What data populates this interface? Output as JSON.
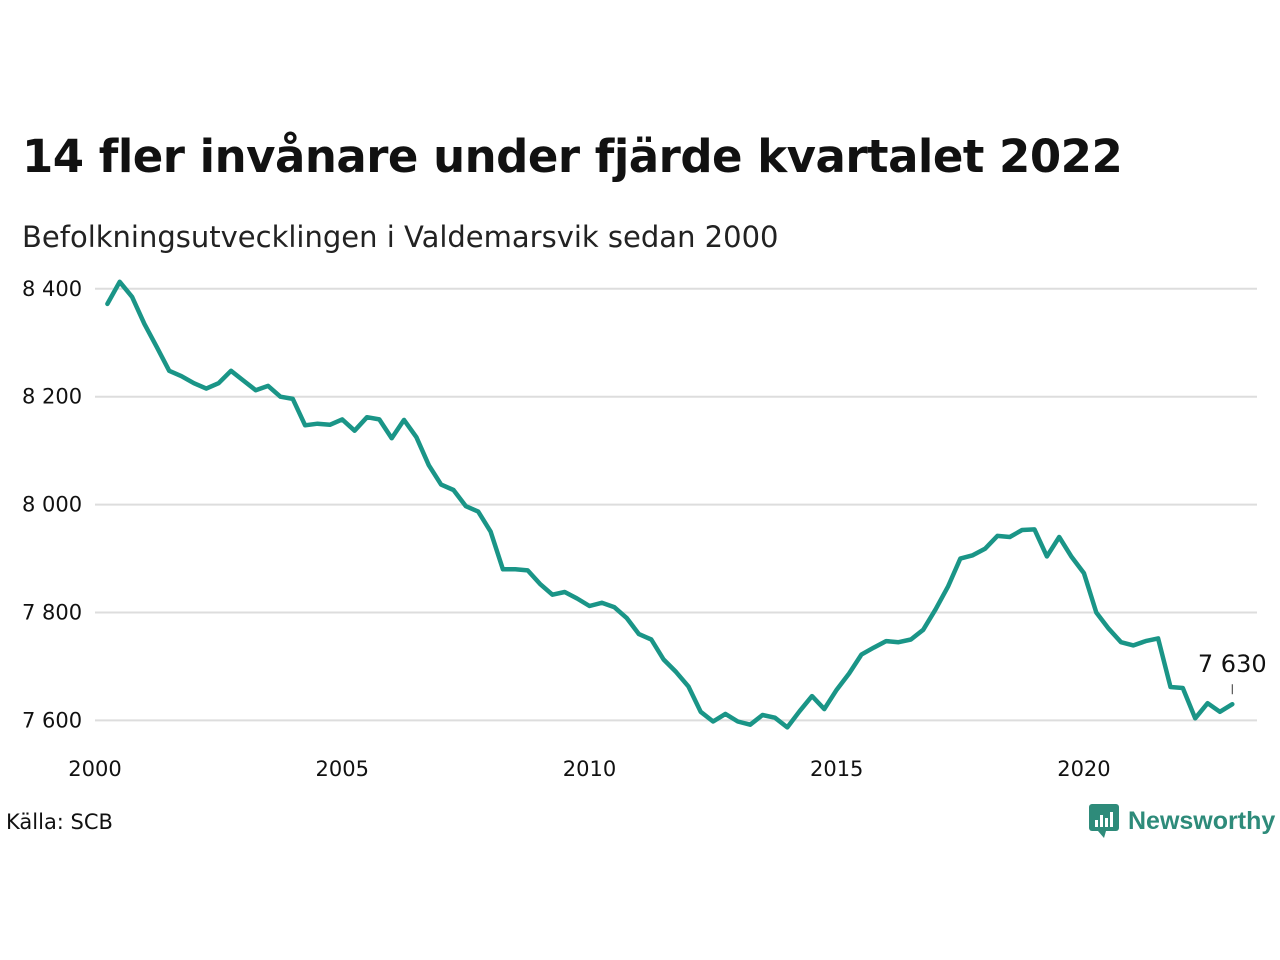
{
  "title": "14 fler invånare under fjärde kvartalet 2022",
  "subtitle": "Befolkningsutvecklingen i Valdemarsvik sedan 2000",
  "source": "Källa: SCB",
  "brand": {
    "name": "Newsworthy",
    "icon": "newsworthy-logo-icon",
    "color": "#2e8b7a"
  },
  "colors": {
    "line": "#1a9587",
    "grid": "#dddddd",
    "text": "#111111"
  },
  "chart_data": {
    "type": "line",
    "title": "14 fler invånare under fjärde kvartalet 2022",
    "subtitle": "Befolkningsutvecklingen i Valdemarsvik sedan 2000",
    "xlabel": "",
    "ylabel": "",
    "xlim": [
      2000,
      2023.5
    ],
    "ylim": [
      7560,
      8420
    ],
    "xticks": [
      2000,
      2005,
      2010,
      2015,
      2020
    ],
    "xtick_labels": [
      "2000",
      "2005",
      "2010",
      "2015",
      "2020"
    ],
    "yticks": [
      7600,
      7800,
      8000,
      8200,
      8400
    ],
    "ytick_labels": [
      "7 600",
      "7 800",
      "8 000",
      "8 200",
      "8 400"
    ],
    "grid": "horizontal",
    "end_label": "7 630",
    "series": [
      {
        "x": [
          2000.25,
          2000.5,
          2000.75,
          2001.0,
          2001.25,
          2001.5,
          2001.75,
          2002.0,
          2002.25,
          2002.5,
          2002.75,
          2003.0,
          2003.25,
          2003.5,
          2003.75,
          2004.0,
          2004.25,
          2004.5,
          2004.75,
          2005.0,
          2005.25,
          2005.5,
          2005.75,
          2006.0,
          2006.25,
          2006.5,
          2006.75,
          2007.0,
          2007.25,
          2007.5,
          2007.75,
          2008.0,
          2008.25,
          2008.5,
          2008.75,
          2009.0,
          2009.25,
          2009.5,
          2009.75,
          2010.0,
          2010.25,
          2010.5,
          2010.75,
          2011.0,
          2011.25,
          2011.5,
          2011.75,
          2012.0,
          2012.25,
          2012.5,
          2012.75,
          2013.0,
          2013.25,
          2013.5,
          2013.75,
          2014.0,
          2014.25,
          2014.5,
          2014.75,
          2015.0,
          2015.25,
          2015.5,
          2015.75,
          2016.0,
          2016.25,
          2016.5,
          2016.75,
          2017.0,
          2017.25,
          2017.5,
          2017.75,
          2018.0,
          2018.25,
          2018.5,
          2018.75,
          2019.0,
          2019.25,
          2019.5,
          2019.75,
          2020.0,
          2020.25,
          2020.5,
          2020.75,
          2021.0,
          2021.25,
          2021.5,
          2021.75,
          2022.0,
          2022.25,
          2022.5,
          2022.75,
          2023.0
        ],
        "values": [
          8372,
          8413,
          8385,
          8335,
          8292,
          8248,
          8238,
          8225,
          8215,
          8225,
          8248,
          8230,
          8212,
          8220,
          8200,
          8196,
          8147,
          8150,
          8148,
          8158,
          8137,
          8162,
          8158,
          8123,
          8157,
          8125,
          8073,
          8037,
          8027,
          7997,
          7987,
          7950,
          7880,
          7880,
          7878,
          7853,
          7833,
          7838,
          7826,
          7812,
          7818,
          7810,
          7790,
          7760,
          7750,
          7713,
          7690,
          7663,
          7616,
          7598,
          7612,
          7598,
          7592,
          7610,
          7605,
          7587,
          7617,
          7645,
          7621,
          7657,
          7687,
          7722,
          7735,
          7747,
          7745,
          7750,
          7768,
          7806,
          7848,
          7900,
          7906,
          7918,
          7942,
          7940,
          7953,
          7954,
          7904,
          7940,
          7903,
          7873,
          7800,
          7770,
          7745,
          7739,
          7747,
          7752,
          7662,
          7660,
          7604,
          7632,
          7616,
          7630
        ]
      }
    ]
  }
}
